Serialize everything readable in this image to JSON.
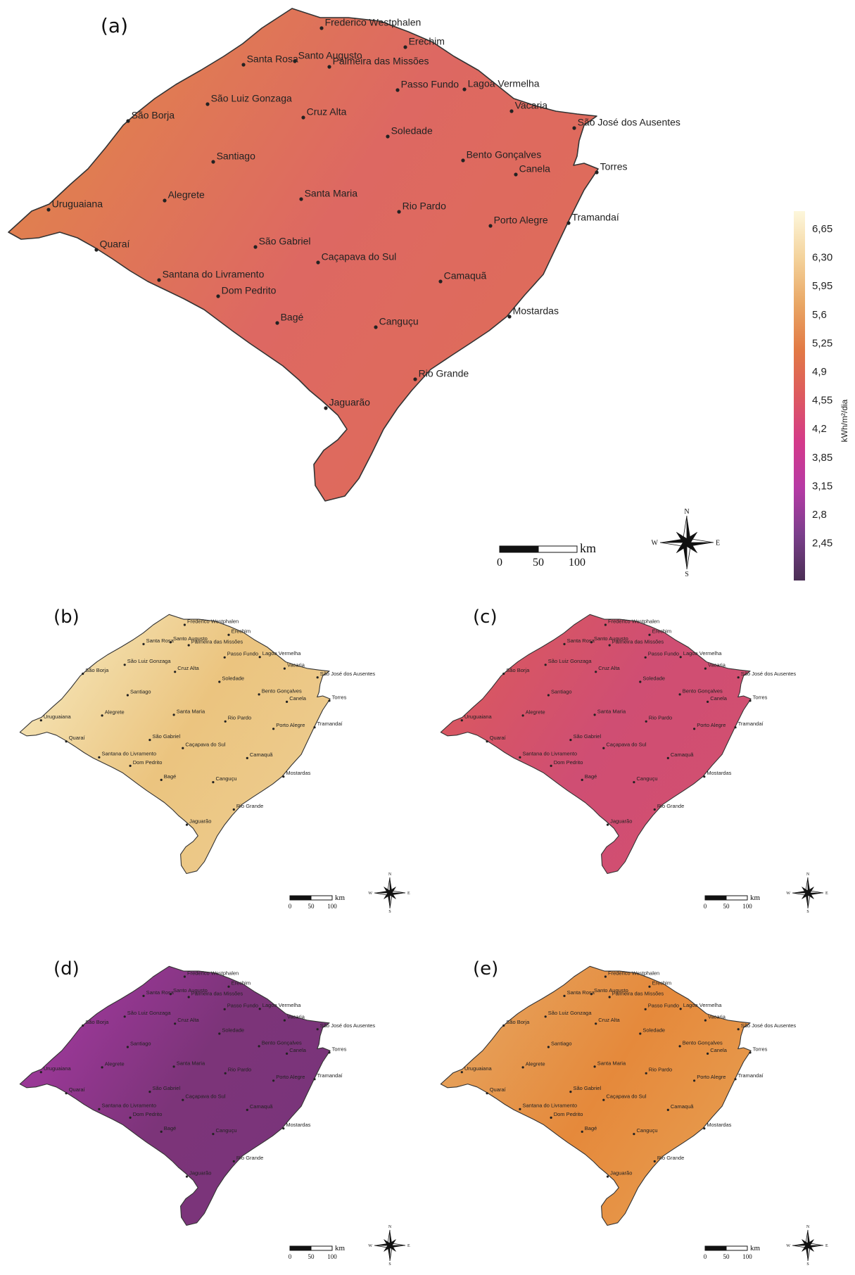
{
  "panels": [
    {
      "id": "a",
      "label": "(a)",
      "color_west": "#e28a47",
      "color_east": "#dd6862",
      "color_south": "#df6c5a"
    },
    {
      "id": "b",
      "label": "(b)",
      "color_west": "#f7ecc3",
      "color_east": "#ebc47f",
      "color_south": "#eccb8d"
    },
    {
      "id": "c",
      "label": "(c)",
      "color_west": "#dd5b5a",
      "color_east": "#cf4e73",
      "color_south": "#d24f70"
    },
    {
      "id": "d",
      "label": "(d)",
      "color_west": "#a93aa6",
      "color_east": "#7c3479",
      "color_south": "#7a347a"
    },
    {
      "id": "e",
      "label": "(e)",
      "color_west": "#e6a965",
      "color_east": "#e5893b",
      "color_south": "#e79a4d"
    }
  ],
  "cities": [
    {
      "name": "Frederico Westphalen"
    },
    {
      "name": "Erechim"
    },
    {
      "name": "Santa Rosa"
    },
    {
      "name": "Santo Augusto"
    },
    {
      "name": "Palmeira das Missões"
    },
    {
      "name": "Passo Fundo"
    },
    {
      "name": "Lagoa Vermelha"
    },
    {
      "name": "São Luiz Gonzaga"
    },
    {
      "name": "São Borja"
    },
    {
      "name": "Cruz Alta"
    },
    {
      "name": "Vacaria"
    },
    {
      "name": "São José dos Ausentes"
    },
    {
      "name": "Soledade"
    },
    {
      "name": "Santiago"
    },
    {
      "name": "Bento Gonçalves"
    },
    {
      "name": "Canela"
    },
    {
      "name": "Torres"
    },
    {
      "name": "Alegrete"
    },
    {
      "name": "Uruguaiana"
    },
    {
      "name": "Santa Maria"
    },
    {
      "name": "Rio Pardo"
    },
    {
      "name": "Porto Alegre"
    },
    {
      "name": "Tramandaí"
    },
    {
      "name": "Quaraí"
    },
    {
      "name": "São Gabriel"
    },
    {
      "name": "Caçapava do Sul"
    },
    {
      "name": "Santana do Livramento"
    },
    {
      "name": "Dom Pedrito"
    },
    {
      "name": "Camaquã"
    },
    {
      "name": "Mostardas"
    },
    {
      "name": "Bagé"
    },
    {
      "name": "Canguçu"
    },
    {
      "name": "Rio Grande"
    },
    {
      "name": "Jaguarão"
    }
  ],
  "scale_bar": {
    "unit": "km",
    "ticks": [
      "0",
      "50",
      "100"
    ]
  },
  "compass": {
    "n": "N",
    "s": "S",
    "e": "E",
    "w": "W"
  },
  "legend": {
    "unit": "kWh/m²/dia",
    "ticks": [
      "6,65",
      "6,30",
      "5,95",
      "5,6",
      "5,25",
      "4,9",
      "4,55",
      "4,2",
      "3,85",
      "3,15",
      "2,8",
      "2,45"
    ],
    "gradient_colors": [
      "#fdf7dc",
      "#f4d39c",
      "#e9a765",
      "#e27a45",
      "#dd5a5f",
      "#d43a8a",
      "#b63aa5",
      "#7b3f8c",
      "#4b2f55"
    ]
  }
}
